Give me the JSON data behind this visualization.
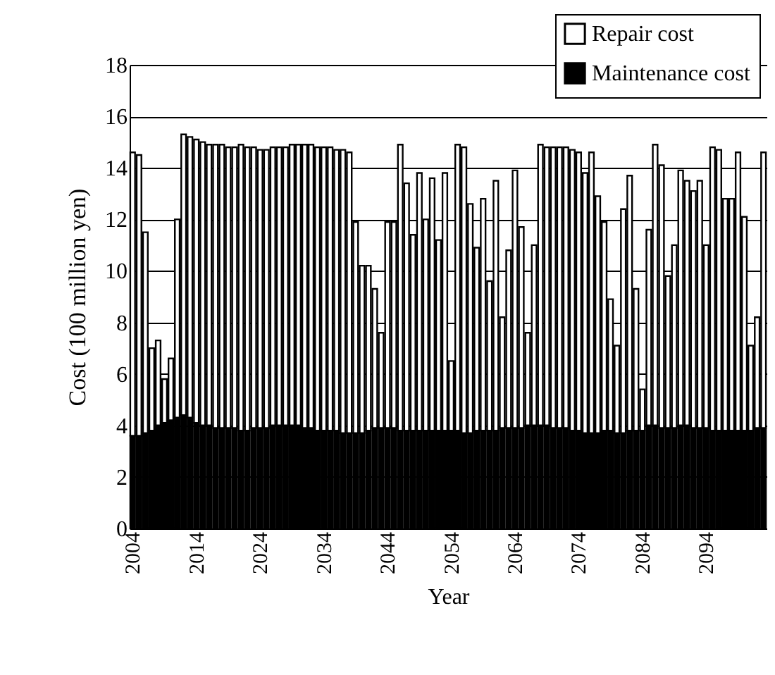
{
  "chart_data": {
    "type": "bar",
    "stacked": true,
    "xlabel": "Year",
    "ylabel": "Cost (100 million yen)",
    "categories": [
      "2004",
      null,
      null,
      null,
      null,
      null,
      null,
      null,
      null,
      null,
      "2014",
      null,
      null,
      null,
      null,
      null,
      null,
      null,
      null,
      null,
      "2024",
      null,
      null,
      null,
      null,
      null,
      null,
      null,
      null,
      null,
      "2034",
      null,
      null,
      null,
      null,
      null,
      null,
      null,
      null,
      null,
      "2044",
      null,
      null,
      null,
      null,
      null,
      null,
      null,
      null,
      null,
      "2054",
      null,
      null,
      null,
      null,
      null,
      null,
      null,
      null,
      null,
      "2064",
      null,
      null,
      null,
      null,
      null,
      null,
      null,
      null,
      null,
      "2074",
      null,
      null,
      null,
      null,
      null,
      null,
      null,
      null,
      null,
      "2084",
      null,
      null,
      null,
      null,
      null,
      null,
      null,
      null,
      null,
      "2094",
      null,
      null,
      null,
      null,
      null,
      null,
      null,
      null,
      null
    ],
    "series": [
      {
        "name": "Maintenance cost",
        "color": "#000000",
        "values": [
          3.6,
          3.6,
          3.7,
          3.8,
          4.0,
          4.1,
          4.2,
          4.3,
          4.4,
          4.3,
          4.1,
          4.0,
          4.0,
          3.9,
          3.9,
          3.9,
          3.9,
          3.8,
          3.8,
          3.9,
          3.9,
          3.9,
          4.0,
          4.0,
          4.0,
          4.0,
          4.0,
          3.9,
          3.9,
          3.8,
          3.8,
          3.8,
          3.8,
          3.7,
          3.7,
          3.7,
          3.7,
          3.8,
          3.9,
          3.9,
          3.9,
          3.9,
          3.8,
          3.8,
          3.8,
          3.8,
          3.8,
          3.8,
          3.8,
          3.8,
          3.8,
          3.8,
          3.7,
          3.7,
          3.8,
          3.8,
          3.8,
          3.8,
          3.9,
          3.9,
          3.9,
          3.9,
          4.0,
          4.0,
          4.0,
          4.0,
          3.9,
          3.9,
          3.9,
          3.8,
          3.8,
          3.7,
          3.7,
          3.7,
          3.8,
          3.8,
          3.7,
          3.7,
          3.8,
          3.8,
          3.8,
          4.0,
          4.0,
          3.9,
          3.9,
          3.9,
          4.0,
          4.0,
          3.9,
          3.9,
          3.9,
          3.8,
          3.8,
          3.8,
          3.8,
          3.8,
          3.8,
          3.8,
          3.9,
          3.9
        ]
      },
      {
        "name": "Repair cost",
        "color": "#ffffff",
        "values": [
          11.0,
          10.9,
          7.8,
          3.2,
          3.3,
          1.7,
          2.4,
          7.7,
          10.9,
          10.9,
          11.0,
          11.0,
          10.9,
          11.0,
          11.0,
          10.9,
          10.9,
          11.1,
          11.0,
          10.9,
          10.8,
          10.8,
          10.8,
          10.8,
          10.8,
          10.9,
          10.9,
          11.0,
          11.0,
          11.0,
          11.0,
          11.0,
          10.9,
          11.0,
          10.9,
          8.2,
          6.5,
          6.4,
          5.4,
          3.7,
          8.0,
          8.0,
          11.1,
          9.6,
          7.6,
          10.0,
          8.2,
          9.8,
          7.4,
          10.0,
          2.7,
          11.1,
          11.1,
          8.9,
          7.1,
          9.0,
          5.8,
          9.7,
          4.3,
          6.9,
          10.0,
          7.8,
          3.6,
          7.0,
          10.9,
          10.8,
          10.9,
          10.9,
          10.9,
          10.9,
          10.8,
          10.1,
          10.9,
          9.2,
          8.1,
          5.1,
          3.4,
          8.7,
          9.9,
          5.5,
          1.6,
          7.6,
          10.9,
          10.2,
          5.9,
          7.1,
          9.9,
          9.5,
          9.2,
          9.6,
          7.1,
          11.0,
          10.9,
          9.0,
          9.0,
          10.8,
          8.3,
          3.3,
          4.3,
          10.7
        ]
      }
    ],
    "ylim": [
      0,
      18
    ],
    "yticks": [
      0,
      2,
      4,
      6,
      8,
      10,
      12,
      14,
      16,
      18
    ],
    "grid": "y",
    "legend": "top right"
  }
}
